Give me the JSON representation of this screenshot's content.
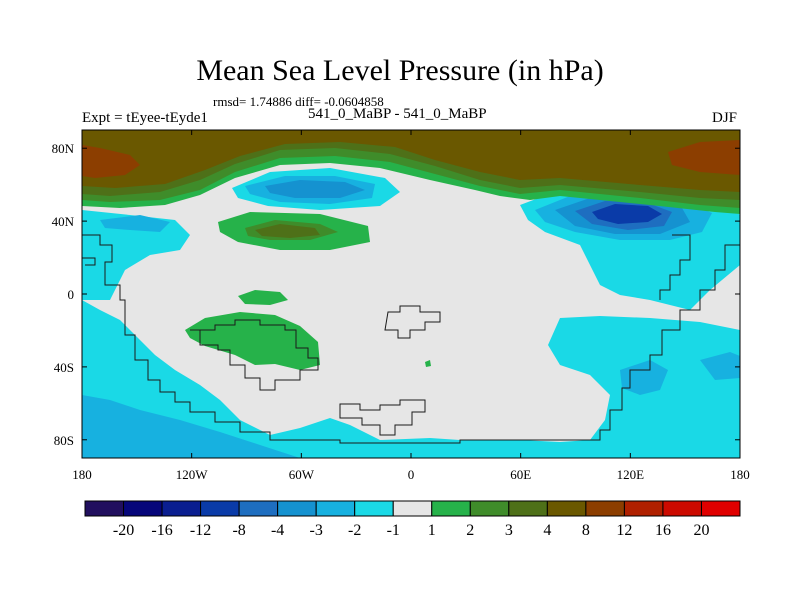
{
  "chart_data": {
    "type": "heatmap",
    "title": "Mean Sea Level Pressure (in hPa)",
    "stats_line": "rmsd= 1.74886 diff= -0.0604858",
    "subtitle": "541_0_MaBP - 541_0_MaBP",
    "experiment_label": "Expt = tEyee-tEyde1",
    "season": "DJF",
    "x_ticks": [
      "180",
      "120W",
      "60W",
      "0",
      "60E",
      "120E",
      "180"
    ],
    "y_ticks": [
      "80N",
      "40N",
      "0",
      "40S",
      "80S"
    ],
    "xlim": [
      -180,
      180
    ],
    "ylim": [
      -90,
      90
    ],
    "colorbar": {
      "levels": [
        "-20",
        "-16",
        "-12",
        "-8",
        "-4",
        "-3",
        "-2",
        "-1",
        "1",
        "2",
        "3",
        "4",
        "8",
        "12",
        "16",
        "20"
      ],
      "colors": [
        "#210f5e",
        "#06067a",
        "#0a1e90",
        "#0a3ba8",
        "#1e6ec0",
        "#1592d0",
        "#17b1e0",
        "#1ad9e6",
        "#e6e6e6",
        "#26b24a",
        "#3f8c2a",
        "#4e7018",
        "#6a5800",
        "#8c3e00",
        "#b02000",
        "#cc0a00",
        "#e00000"
      ]
    }
  }
}
